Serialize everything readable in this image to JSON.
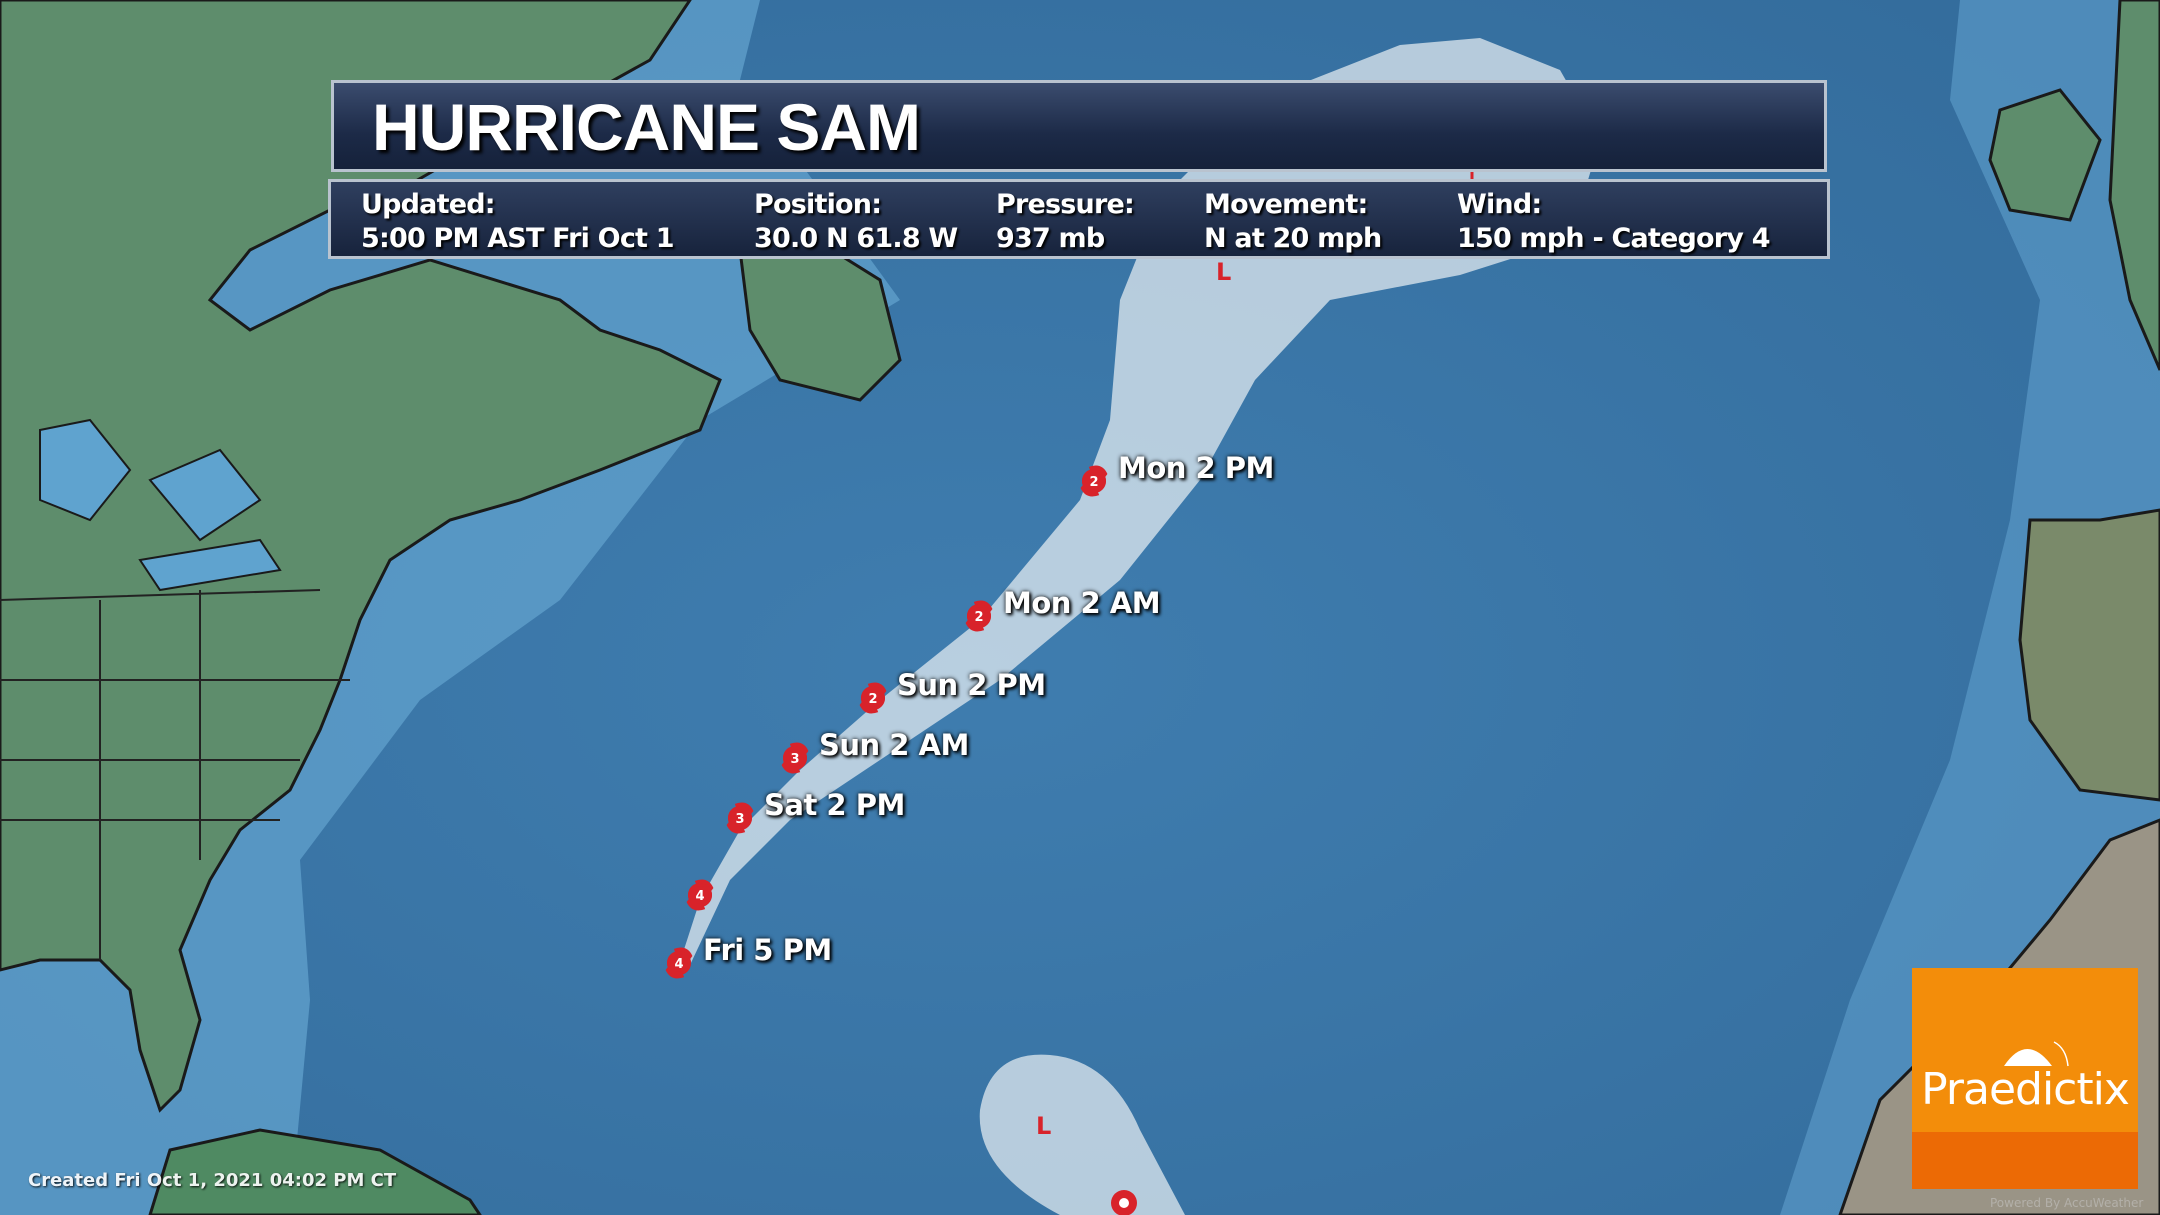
{
  "header": {
    "title": "HURRICANE SAM"
  },
  "info": [
    {
      "label": "Updated:",
      "value": "5:00 PM AST Fri Oct 1"
    },
    {
      "label": "Position:",
      "value": "30.0 N  61.8 W"
    },
    {
      "label": "Pressure:",
      "value": "937 mb"
    },
    {
      "label": "Movement:",
      "value": "N at 20 mph"
    },
    {
      "label": "Wind:",
      "value": "150 mph - Category 4"
    }
  ],
  "track": [
    {
      "label": "Fri 5 PM",
      "category": "4"
    },
    {
      "label": "",
      "category": "4"
    },
    {
      "label": "Sat 2 PM",
      "category": "3"
    },
    {
      "label": "Sun 2 AM",
      "category": "3"
    },
    {
      "label": "Sun 2 PM",
      "category": "2"
    },
    {
      "label": "Mon 2 AM",
      "category": "2"
    },
    {
      "label": "Mon 2 PM",
      "category": "2"
    }
  ],
  "lows": [
    "L",
    "L"
  ],
  "footer": {
    "created": "Created Fri Oct  1, 2021 04:02 PM CT",
    "powered": "Powered By AccuWeather"
  },
  "logo": {
    "name": "Praedictix"
  },
  "colors": {
    "ocean": "#3a78a8",
    "cone": "#e8eef2",
    "storm_icon": "#d8232a",
    "logo_orange": "#f38d0a",
    "logo_dark_orange": "#ec6a05",
    "header": "#1c2a47"
  }
}
